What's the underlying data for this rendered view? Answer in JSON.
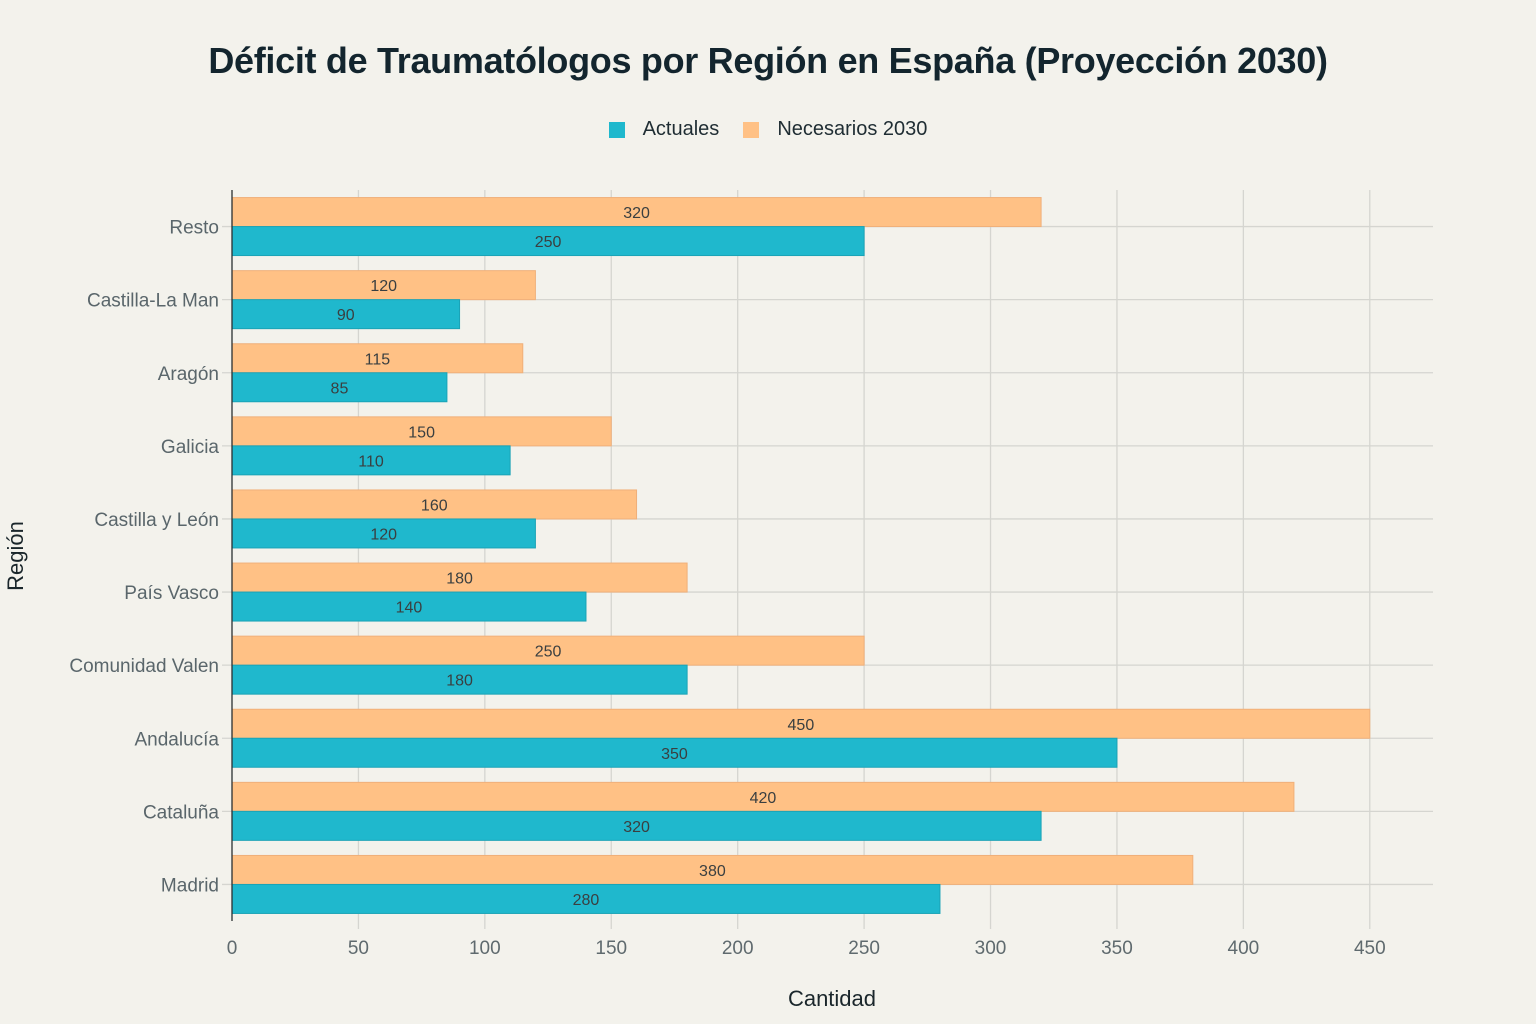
{
  "chart_data": {
    "type": "bar",
    "orientation": "horizontal",
    "title": "Déficit de Traumatólogos por Región en España (Proyección 2030)",
    "xlabel": "Cantidad",
    "ylabel": "Región",
    "xlim": [
      0,
      475
    ],
    "xticks": [
      0,
      50,
      100,
      150,
      200,
      250,
      300,
      350,
      400,
      450
    ],
    "grid": true,
    "legend_position": "top-center",
    "categories": [
      "Madrid",
      "Cataluña",
      "Andalucía",
      "Comunidad Valen",
      "País Vasco",
      "Castilla y León",
      "Galicia",
      "Aragón",
      "Castilla-La Man",
      "Resto"
    ],
    "series": [
      {
        "name": "Actuales",
        "color": "#1fb8cd",
        "values": [
          280,
          320,
          350,
          180,
          140,
          120,
          110,
          85,
          90,
          250
        ]
      },
      {
        "name": "Necesarios 2030",
        "color": "#ffc185",
        "values": [
          380,
          420,
          450,
          250,
          180,
          160,
          150,
          115,
          120,
          320
        ]
      }
    ]
  }
}
